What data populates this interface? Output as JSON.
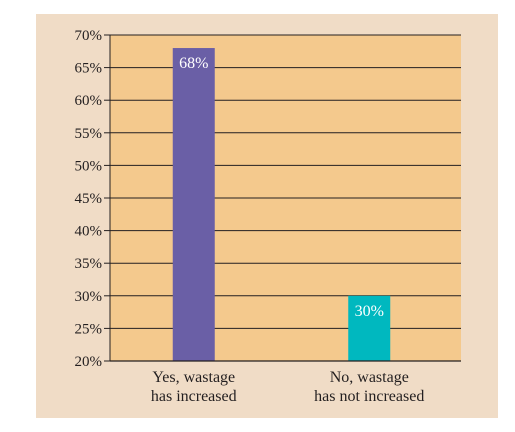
{
  "chart_data": {
    "type": "bar",
    "categories": [
      [
        "Yes, wastage",
        "has increased"
      ],
      [
        "No, wastage",
        "has not increased"
      ]
    ],
    "values": [
      68,
      30
    ],
    "data_labels": [
      "68%",
      "30%"
    ],
    "bar_colors": [
      "#6a5fa6",
      "#00b8bf"
    ],
    "ylim": [
      20,
      70
    ],
    "yticks": [
      20,
      25,
      30,
      35,
      40,
      45,
      50,
      55,
      60,
      65,
      70
    ],
    "ytick_labels": [
      "20%",
      "25%",
      "30%",
      "35%",
      "40%",
      "45%",
      "50%",
      "55%",
      "60%",
      "65%",
      "70%"
    ],
    "grid": true,
    "plot_background": "#f4c98d",
    "panel_background": "#f0dcc6",
    "title": "",
    "xlabel": "",
    "ylabel": ""
  }
}
